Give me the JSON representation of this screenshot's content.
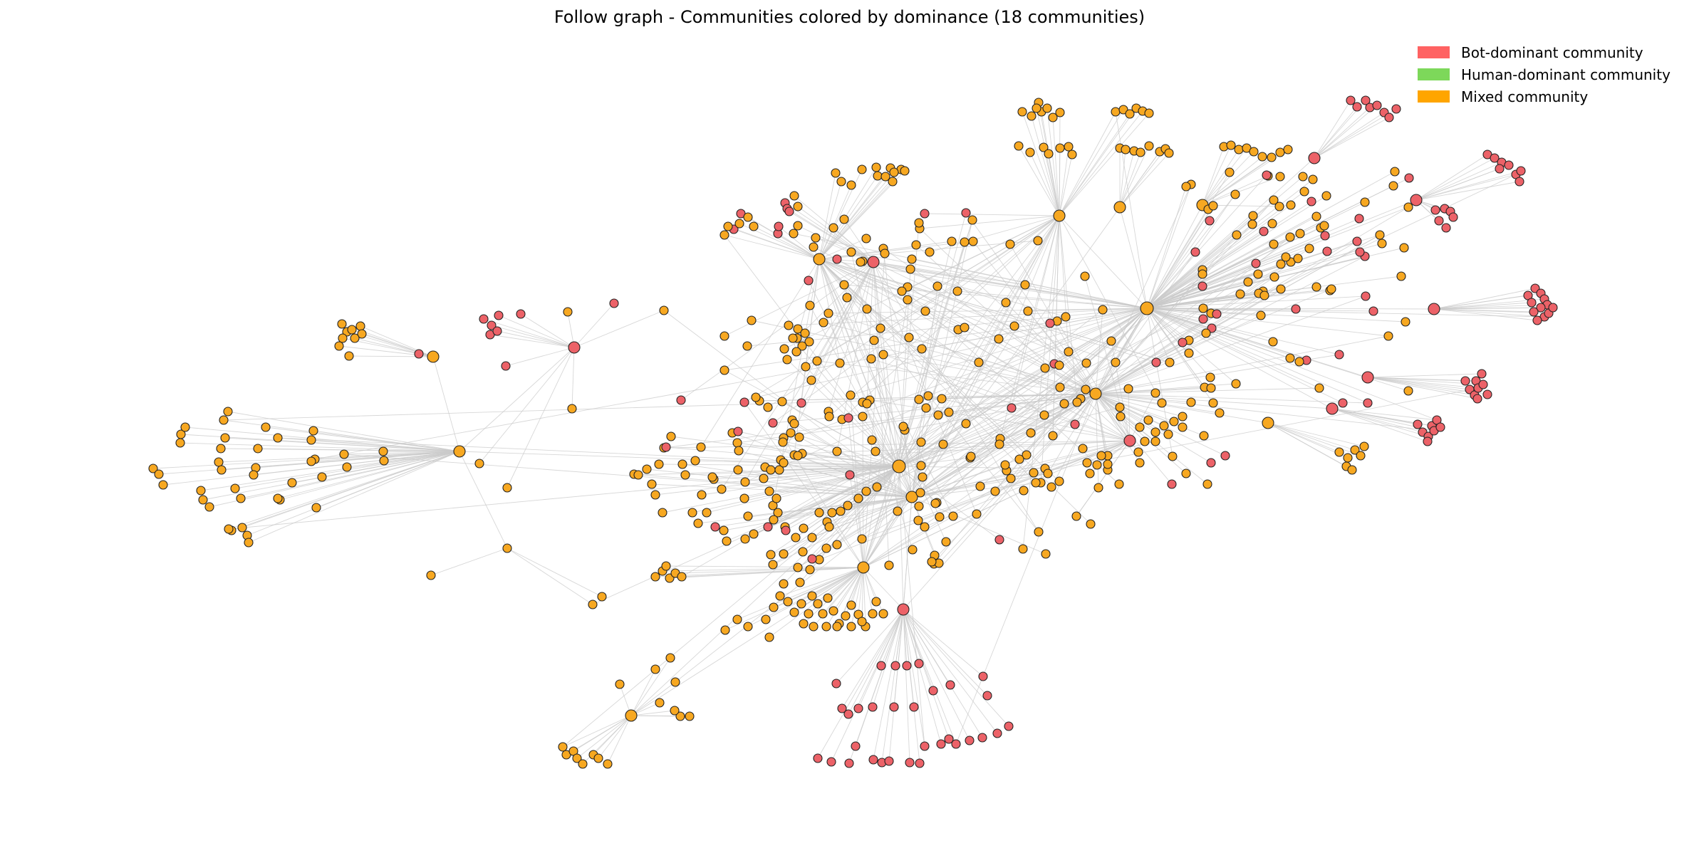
{
  "title": "Follow graph - Communities colored by dominance (18 communities)",
  "colors": {
    "bot": "#ec6268",
    "human": "#7fd65a",
    "mixed": "#f7a821",
    "edge": "#c9c9c9",
    "node_outline": "#222222"
  },
  "legend": [
    {
      "label": "Bot-dominant community",
      "color": "#ff6262"
    },
    {
      "label": "Human-dominant community",
      "color": "#7dd85a"
    },
    {
      "label": "Mixed community",
      "color": "#ffa500"
    }
  ]
}
